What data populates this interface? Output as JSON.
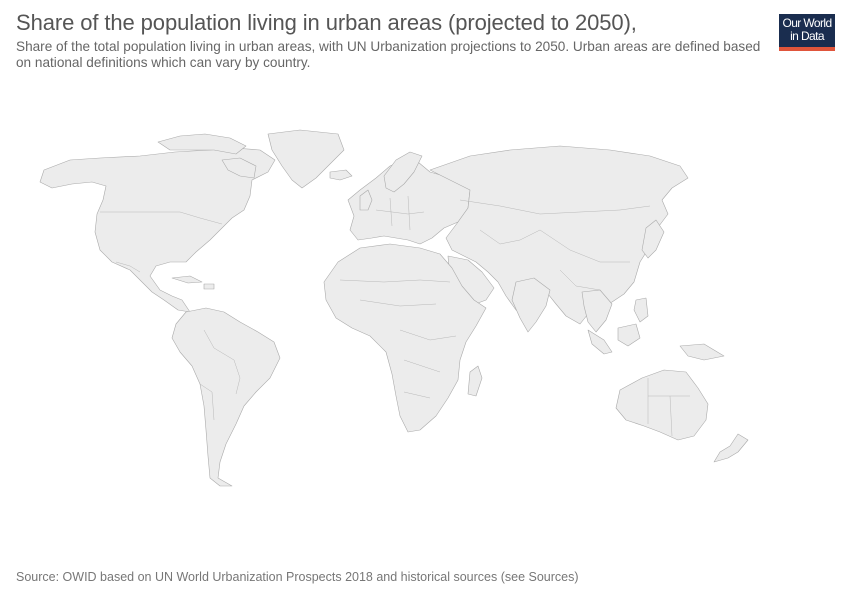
{
  "header": {
    "title": "Share of the population living in urban areas (projected to 2050),",
    "subtitle": "Share of the total population living in urban areas, with UN Urbanization projections to 2050. Urban areas are defined based on national definitions which can vary by country."
  },
  "logo": {
    "line1": "Our World",
    "line2": "in Data",
    "bg_color": "#1a2d4f",
    "accent_color": "#e0553b"
  },
  "map": {
    "land_color": "#ececec",
    "border_color": "#aaaaaa"
  },
  "footer": {
    "source": "Source: OWID based on UN World Urbanization Prospects 2018 and historical sources (see Sources)"
  }
}
